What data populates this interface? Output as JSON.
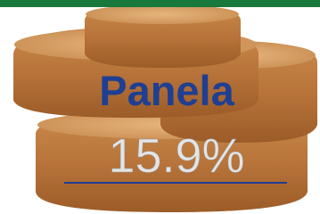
{
  "title": "Panela",
  "value": "15.9%"
}
